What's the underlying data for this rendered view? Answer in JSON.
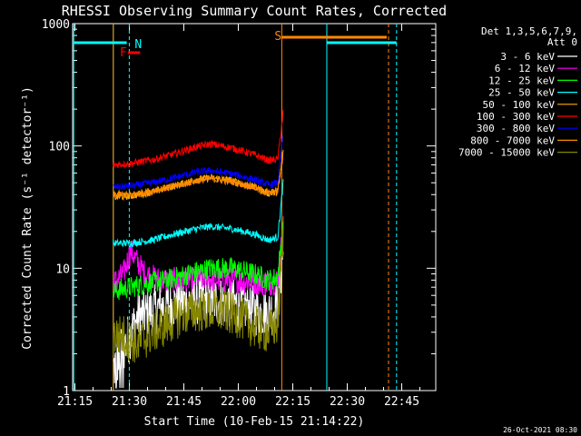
{
  "chart_data": {
    "type": "line",
    "title": "RHESSI Observing Summary Count Rates, Corrected",
    "xlabel": "Start Time (10-Feb-15 21:14:22)",
    "ylabel": "Corrected Count Rate (s⁻¹ detector⁻¹)",
    "yscale": "log",
    "ylim": [
      1,
      1000
    ],
    "xlim_minutes_from_21_14_22": [
      0,
      100
    ],
    "x_ticks": [
      "21:15",
      "21:30",
      "21:45",
      "22:00",
      "22:15",
      "22:30",
      "22:45"
    ],
    "y_ticks": [
      "1",
      "10",
      "100",
      "1000"
    ],
    "legend_header": [
      "Det 1,3,5,6,7,9,",
      "Att 0"
    ],
    "legend_placement": "right",
    "footer_date": "26-Oct-2021 08:30",
    "series": [
      {
        "name": "3 - 6 keV",
        "color": "#ffffff",
        "x": [
          11.2,
          14,
          18,
          22,
          26,
          30,
          34,
          38,
          42,
          46,
          50,
          54,
          56.5,
          58
        ],
        "y": [
          1.5,
          2.2,
          4.0,
          4.5,
          5.0,
          5.2,
          5.5,
          5.5,
          5.3,
          5.0,
          4.5,
          4.3,
          5,
          14
        ]
      },
      {
        "name": "6 - 12 keV",
        "color": "#ff00ff",
        "x": [
          11.2,
          14,
          16,
          18,
          20,
          24,
          30,
          36,
          42,
          48,
          54,
          56.5,
          58
        ],
        "y": [
          7.5,
          9.0,
          14.0,
          11.0,
          9.0,
          8.0,
          8.0,
          8.3,
          8.0,
          7.8,
          7.5,
          8,
          22
        ]
      },
      {
        "name": "12 - 25 keV",
        "color": "#00ff00",
        "x": [
          11.2,
          16,
          20,
          26,
          32,
          38,
          44,
          50,
          54,
          56.5,
          58
        ],
        "y": [
          6.5,
          7.0,
          7.5,
          8.0,
          9.0,
          10.0,
          10.0,
          9.0,
          8.0,
          8.5,
          24
        ]
      },
      {
        "name": "25 - 50 keV",
        "color": "#00ffff",
        "x": [
          11.2,
          16,
          22,
          28,
          34,
          38,
          44,
          50,
          54,
          56.5,
          58
        ],
        "y": [
          16,
          16,
          17,
          19,
          21,
          22,
          21,
          19,
          17,
          18,
          50
        ]
      },
      {
        "name": "50 - 100 keV",
        "color": "#ffaa00",
        "x": [
          11.2,
          16,
          22,
          28,
          34,
          38,
          44,
          50,
          54,
          56.5,
          58
        ],
        "y": [
          38,
          39,
          42,
          47,
          53,
          55,
          52,
          46,
          41,
          42,
          90
        ]
      },
      {
        "name": "100 - 300 keV",
        "color": "#ff0000",
        "x": [
          11.2,
          16,
          22,
          28,
          34,
          38,
          44,
          50,
          54,
          56.5,
          58
        ],
        "y": [
          70,
          72,
          77,
          86,
          98,
          104,
          96,
          85,
          76,
          78,
          190
        ]
      },
      {
        "name": "300 - 800 keV",
        "color": "#0000ff",
        "x": [
          11.2,
          16,
          22,
          28,
          34,
          38,
          44,
          50,
          54,
          56.5,
          58
        ],
        "y": [
          46,
          47,
          50,
          55,
          61,
          63,
          59,
          53,
          48,
          50,
          125
        ]
      },
      {
        "name": "800 - 7000 keV",
        "color": "#ff8800",
        "x": [
          11.2,
          16,
          22,
          28,
          34,
          38,
          44,
          50,
          54,
          56.5,
          58
        ],
        "y": [
          40,
          40,
          43,
          47,
          52,
          54,
          51,
          46,
          41,
          43,
          85
        ]
      },
      {
        "name": "7000 - 15000 keV",
        "color": "#888800",
        "x": [
          11.2,
          14,
          18,
          22,
          26,
          30,
          34,
          38,
          42,
          46,
          50,
          54,
          56.5,
          58
        ],
        "y": [
          2.8,
          2.8,
          2.4,
          3.0,
          3.5,
          4.2,
          4.5,
          4.5,
          4.4,
          4.0,
          3.3,
          3.0,
          3.5,
          20
        ]
      }
    ],
    "annotations": [
      {
        "label": "N",
        "color": "#00ffff",
        "x": 15.6
      },
      {
        "label": "F",
        "color": "#ff0000",
        "x": 15
      },
      {
        "label": "S",
        "color": "#ff8800",
        "x": 57.6
      }
    ]
  }
}
